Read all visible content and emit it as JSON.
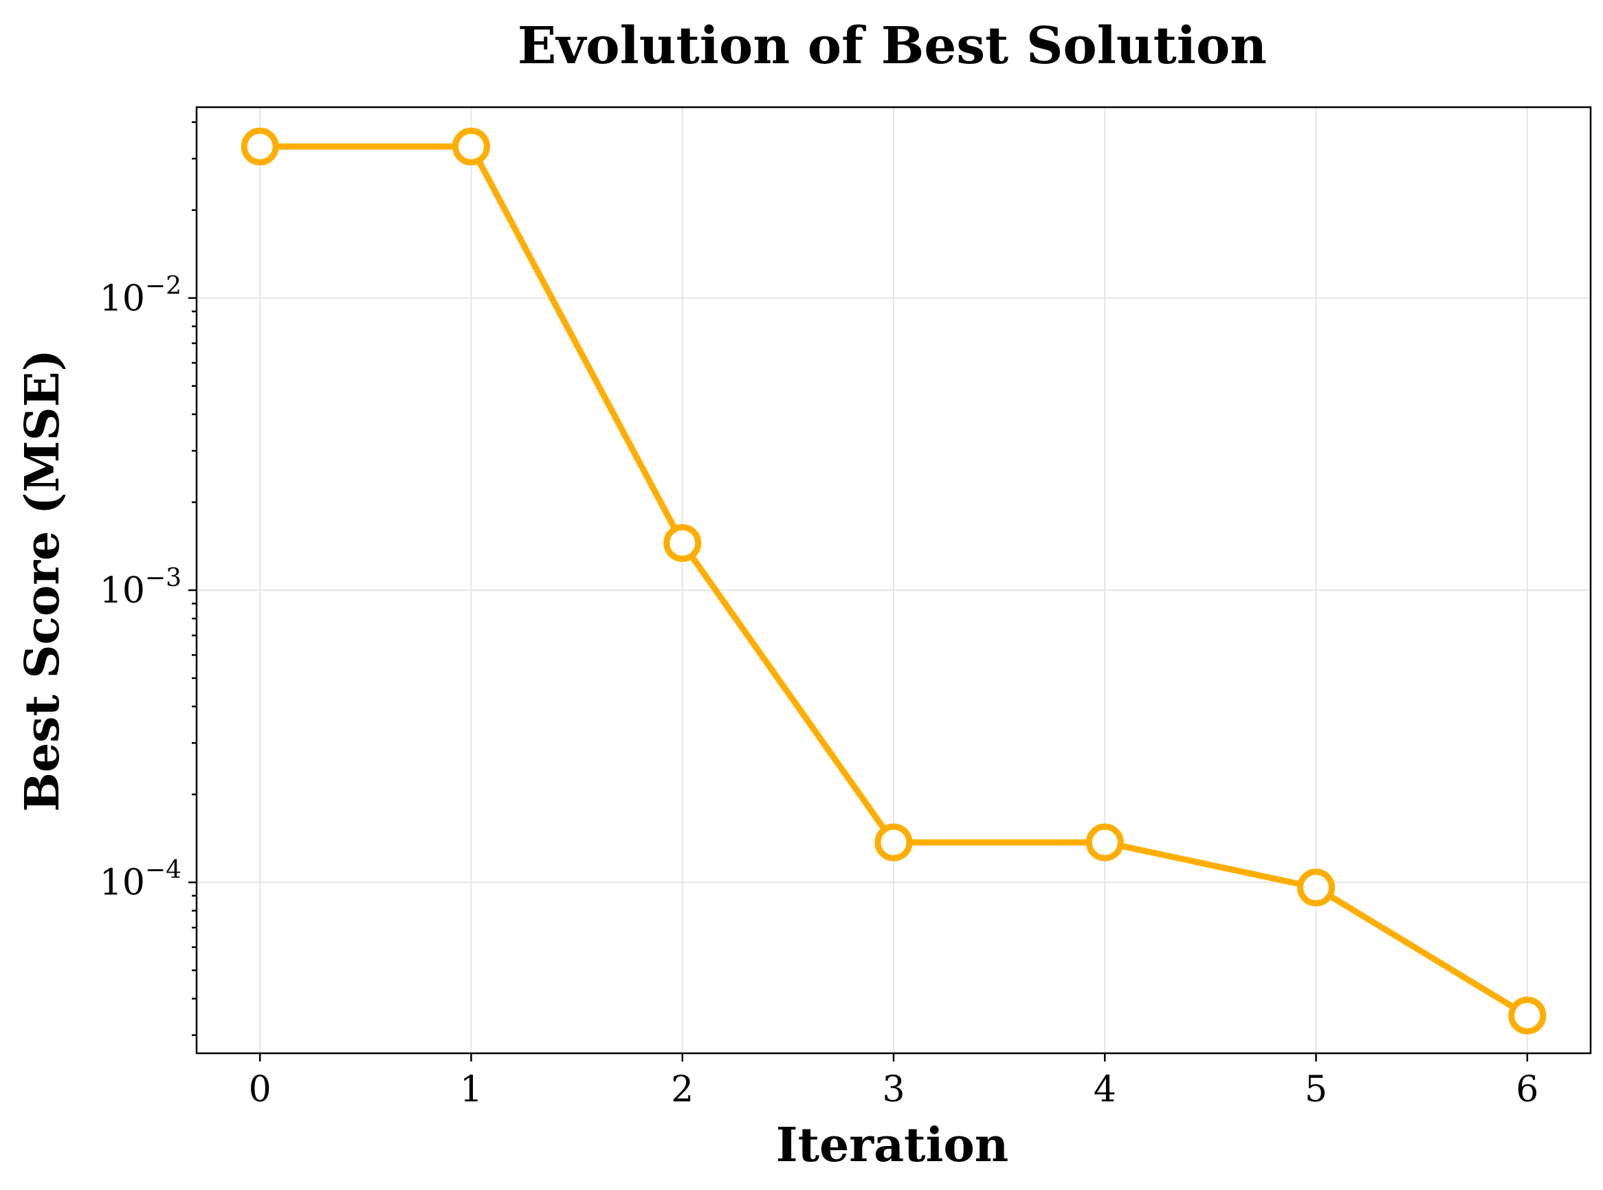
{
  "chart_data": {
    "type": "line",
    "title": "Evolution of Best Solution",
    "xlabel": "Iteration",
    "ylabel": "Best Score (MSE)",
    "yscale": "log",
    "grid": true,
    "xlim": [
      -0.3,
      6.3
    ],
    "ylim": [
      2.6e-05,
      0.045
    ],
    "x": [
      0,
      1,
      2,
      3,
      4,
      5,
      6
    ],
    "x_ticks": [
      0,
      1,
      2,
      3,
      4,
      5,
      6
    ],
    "y_major_ticks": [
      {
        "value": 0.01,
        "base": "10",
        "exp": "−2"
      },
      {
        "value": 0.001,
        "base": "10",
        "exp": "−3"
      },
      {
        "value": 0.0001,
        "base": "10",
        "exp": "−4"
      }
    ],
    "series": [
      {
        "color": "#FFAE00",
        "marker": "hollow-circle",
        "values": [
          0.033,
          0.033,
          0.00145,
          0.000137,
          0.000137,
          9.6e-05,
          3.5e-05
        ]
      }
    ]
  }
}
